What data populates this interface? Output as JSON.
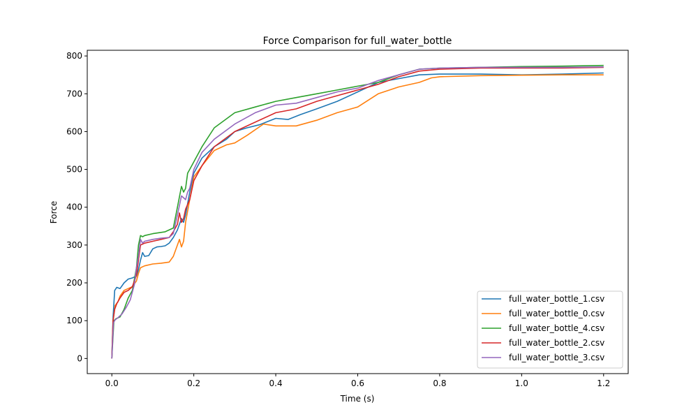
{
  "chart_data": {
    "type": "line",
    "title": "Force Comparison for full_water_bottle",
    "xlabel": "Time (s)",
    "ylabel": "Force",
    "xlim": [
      -0.06,
      1.26
    ],
    "ylim": [
      -40,
      815
    ],
    "xticks": [
      0.0,
      0.2,
      0.4,
      0.6,
      0.8,
      1.0,
      1.2
    ],
    "xtick_labels": [
      "0.0",
      "0.2",
      "0.4",
      "0.6",
      "0.8",
      "1.0",
      "1.2"
    ],
    "yticks": [
      0,
      100,
      200,
      300,
      400,
      500,
      600,
      700,
      800
    ],
    "ytick_labels": [
      "0",
      "100",
      "200",
      "300",
      "400",
      "500",
      "600",
      "700",
      "800"
    ],
    "grid": false,
    "legend_position": "lower-right",
    "series": [
      {
        "name": "full_water_bottle_1.csv",
        "color": "#1f77b4",
        "x": [
          0,
          0.003,
          0.007,
          0.012,
          0.02,
          0.03,
          0.04,
          0.05,
          0.06,
          0.065,
          0.07,
          0.075,
          0.08,
          0.09,
          0.1,
          0.11,
          0.12,
          0.13,
          0.14,
          0.15,
          0.16,
          0.17,
          0.175,
          0.18,
          0.19,
          0.2,
          0.22,
          0.25,
          0.28,
          0.3,
          0.33,
          0.36,
          0.4,
          0.43,
          0.46,
          0.5,
          0.55,
          0.6,
          0.65,
          0.7,
          0.75,
          0.8,
          0.9,
          1.0,
          1.1,
          1.2
        ],
        "y": [
          0,
          110,
          180,
          188,
          185,
          200,
          210,
          213,
          218,
          235,
          260,
          280,
          270,
          272,
          290,
          295,
          296,
          298,
          305,
          320,
          340,
          370,
          360,
          380,
          440,
          490,
          530,
          560,
          580,
          600,
          610,
          618,
          635,
          632,
          645,
          660,
          680,
          705,
          730,
          740,
          750,
          752,
          752,
          750,
          752,
          755
        ]
      },
      {
        "name": "full_water_bottle_0.csv",
        "color": "#ff7f0e",
        "x": [
          0,
          0.003,
          0.008,
          0.015,
          0.02,
          0.03,
          0.04,
          0.05,
          0.06,
          0.065,
          0.07,
          0.08,
          0.1,
          0.12,
          0.14,
          0.15,
          0.16,
          0.165,
          0.17,
          0.175,
          0.18,
          0.19,
          0.2,
          0.22,
          0.25,
          0.28,
          0.3,
          0.33,
          0.37,
          0.4,
          0.45,
          0.5,
          0.55,
          0.6,
          0.65,
          0.7,
          0.75,
          0.78,
          0.8,
          0.9,
          1.0,
          1.1,
          1.2
        ],
        "y": [
          0,
          100,
          140,
          150,
          165,
          180,
          185,
          190,
          205,
          225,
          240,
          245,
          250,
          252,
          255,
          270,
          300,
          315,
          295,
          310,
          360,
          420,
          480,
          510,
          550,
          565,
          570,
          590,
          620,
          615,
          615,
          630,
          650,
          665,
          700,
          718,
          730,
          742,
          745,
          748,
          749,
          750,
          750
        ]
      },
      {
        "name": "full_water_bottle_4.csv",
        "color": "#2ca02c",
        "x": [
          0,
          0.005,
          0.01,
          0.02,
          0.03,
          0.04,
          0.05,
          0.06,
          0.065,
          0.07,
          0.075,
          0.08,
          0.1,
          0.13,
          0.15,
          0.16,
          0.17,
          0.175,
          0.18,
          0.185,
          0.19,
          0.2,
          0.22,
          0.25,
          0.3,
          0.35,
          0.4,
          0.45,
          0.5,
          0.55,
          0.6,
          0.65,
          0.7,
          0.75,
          0.8,
          0.9,
          1.0,
          1.1,
          1.2
        ],
        "y": [
          0,
          100,
          105,
          110,
          130,
          160,
          180,
          240,
          300,
          325,
          322,
          325,
          330,
          335,
          345,
          400,
          455,
          440,
          450,
          490,
          500,
          520,
          560,
          610,
          650,
          665,
          680,
          690,
          700,
          710,
          720,
          730,
          750,
          765,
          768,
          770,
          772,
          773,
          775
        ]
      },
      {
        "name": "full_water_bottle_2.csv",
        "color": "#d62728",
        "x": [
          0,
          0.003,
          0.007,
          0.012,
          0.02,
          0.03,
          0.04,
          0.05,
          0.06,
          0.065,
          0.07,
          0.08,
          0.1,
          0.12,
          0.14,
          0.15,
          0.16,
          0.165,
          0.17,
          0.175,
          0.18,
          0.19,
          0.2,
          0.22,
          0.25,
          0.3,
          0.35,
          0.4,
          0.45,
          0.5,
          0.55,
          0.6,
          0.65,
          0.7,
          0.75,
          0.8,
          0.9,
          1.0,
          1.1,
          1.2
        ],
        "y": [
          0,
          100,
          130,
          145,
          160,
          175,
          180,
          190,
          220,
          260,
          300,
          305,
          310,
          315,
          320,
          335,
          355,
          385,
          360,
          370,
          395,
          420,
          470,
          510,
          560,
          600,
          625,
          650,
          660,
          680,
          695,
          710,
          725,
          745,
          760,
          765,
          768,
          768,
          768,
          770
        ]
      },
      {
        "name": "full_water_bottle_3.csv",
        "color": "#9467bd",
        "x": [
          0,
          0.004,
          0.008,
          0.015,
          0.025,
          0.035,
          0.045,
          0.055,
          0.06,
          0.065,
          0.07,
          0.075,
          0.08,
          0.1,
          0.12,
          0.14,
          0.15,
          0.16,
          0.17,
          0.18,
          0.185,
          0.19,
          0.2,
          0.22,
          0.25,
          0.3,
          0.35,
          0.4,
          0.45,
          0.5,
          0.55,
          0.6,
          0.65,
          0.7,
          0.75,
          0.8,
          0.9,
          1.0,
          1.1,
          1.2
        ],
        "y": [
          0,
          95,
          102,
          108,
          118,
          135,
          155,
          195,
          240,
          270,
          315,
          305,
          310,
          315,
          318,
          320,
          330,
          380,
          430,
          420,
          440,
          450,
          500,
          545,
          580,
          620,
          650,
          670,
          675,
          690,
          705,
          715,
          735,
          750,
          765,
          768,
          770,
          770,
          770,
          771
        ]
      }
    ]
  }
}
